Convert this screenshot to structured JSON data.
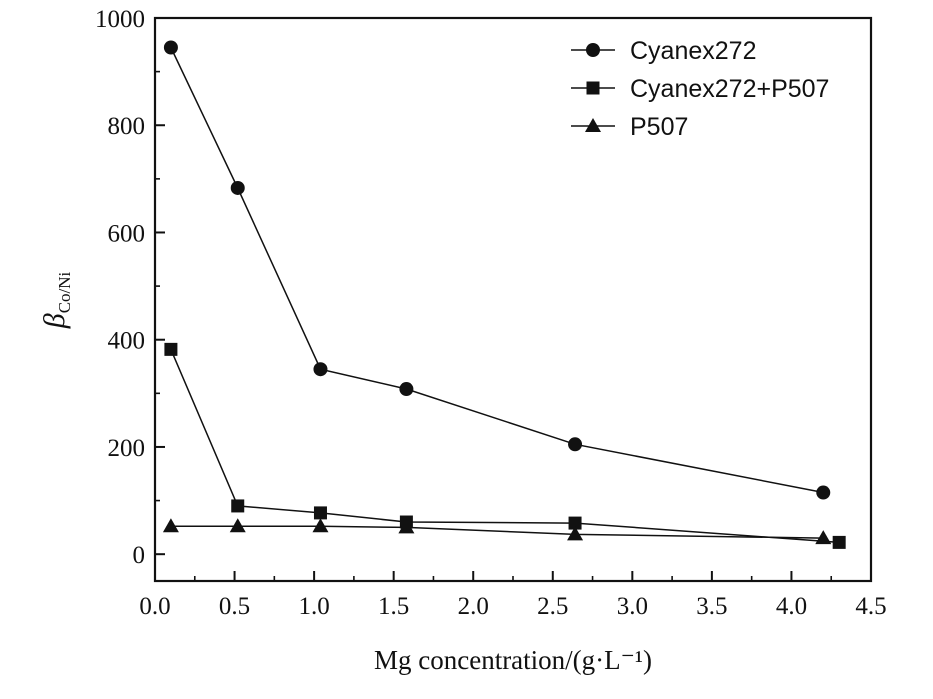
{
  "chart_data": {
    "type": "line",
    "title": "",
    "xlabel": "Mg concentration/(g·L⁻¹)",
    "ylabel": {
      "symbol": "β",
      "subscript": "Co/Ni"
    },
    "xlim": [
      0.0,
      4.5
    ],
    "ylim": [
      -50,
      1000
    ],
    "x_ticks": [
      "0.0",
      "0.5",
      "1.0",
      "1.5",
      "2.0",
      "2.5",
      "3.0",
      "3.5",
      "4.0",
      "4.5"
    ],
    "y_ticks": [
      "0",
      "200",
      "400",
      "600",
      "800",
      "1000"
    ],
    "grid": false,
    "legend_position": "top-right",
    "series": [
      {
        "name": "Cyanex272",
        "marker": "circle",
        "points": [
          [
            0.1,
            945
          ],
          [
            0.52,
            683
          ],
          [
            1.04,
            345
          ],
          [
            1.58,
            308
          ],
          [
            2.64,
            205
          ],
          [
            4.2,
            115
          ]
        ]
      },
      {
        "name": "Cyanex272+P507",
        "marker": "square",
        "points": [
          [
            0.1,
            382
          ],
          [
            0.52,
            90
          ],
          [
            1.04,
            77
          ],
          [
            1.58,
            60
          ],
          [
            2.64,
            58
          ],
          [
            4.3,
            22
          ]
        ]
      },
      {
        "name": "P507",
        "marker": "triangle",
        "points": [
          [
            0.1,
            52
          ],
          [
            0.52,
            52
          ],
          [
            1.04,
            52
          ],
          [
            1.58,
            50
          ],
          [
            2.64,
            37
          ],
          [
            4.2,
            30
          ]
        ]
      }
    ]
  }
}
